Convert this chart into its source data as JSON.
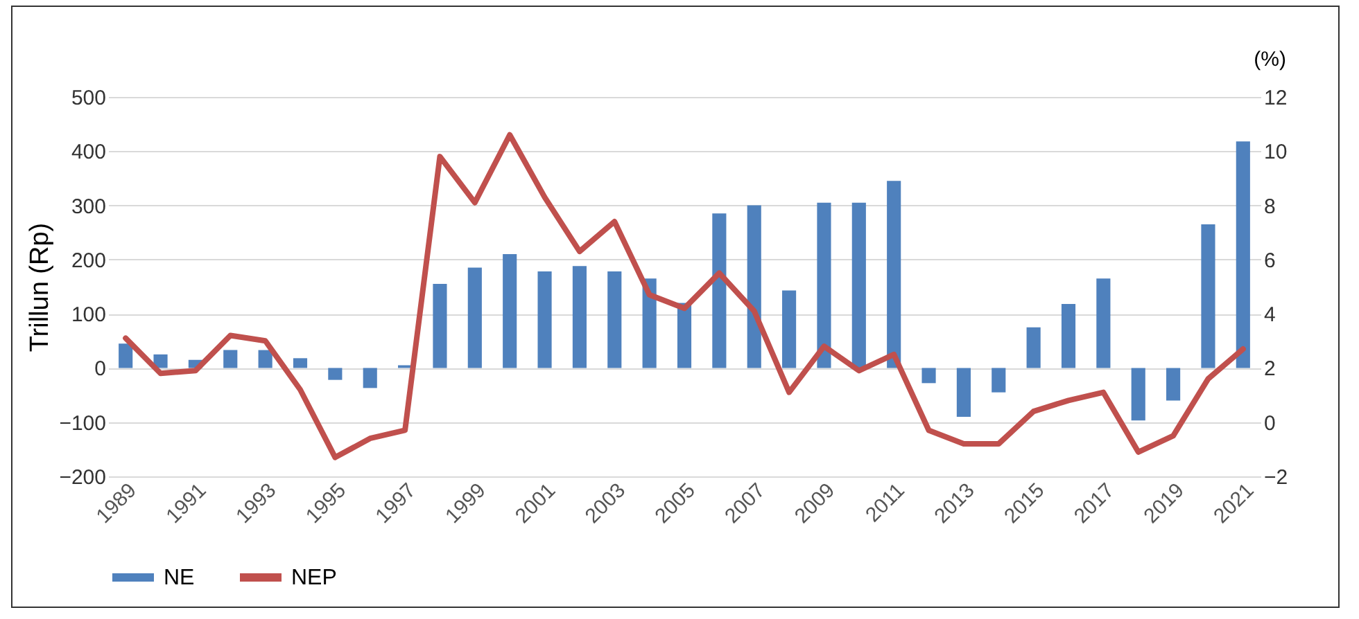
{
  "chart_data": {
    "type": "bar",
    "categories": [
      "1989",
      null,
      "1991",
      null,
      "1993",
      null,
      "1995",
      null,
      "1997",
      null,
      "1999",
      null,
      "2001",
      null,
      "2003",
      null,
      "2005",
      null,
      "2007",
      null,
      "2009",
      null,
      "2011",
      null,
      "2013",
      null,
      "2015",
      null,
      "2017",
      null,
      "2019",
      null,
      "2021"
    ],
    "series": [
      {
        "name": "NE",
        "color": "#4f81bd",
        "values": [
          45,
          25,
          15,
          33,
          33,
          18,
          -22,
          -37,
          5,
          155,
          185,
          210,
          178,
          188,
          178,
          165,
          120,
          285,
          300,
          143,
          305,
          305,
          345,
          -28,
          -90,
          -45,
          75,
          118,
          165,
          -97,
          -60,
          265,
          418
        ]
      },
      {
        "name": "NEP",
        "type": "line",
        "axis": "y2",
        "color": "#c0504d",
        "values": [
          3.1,
          1.8,
          1.9,
          3.2,
          3.0,
          1.2,
          -1.3,
          -0.6,
          -0.3,
          9.8,
          8.1,
          10.6,
          8.3,
          6.3,
          7.4,
          4.7,
          4.2,
          5.5,
          4.1,
          1.1,
          2.8,
          1.9,
          2.5,
          -0.3,
          -0.8,
          -0.8,
          0.4,
          0.8,
          1.1,
          -1.1,
          -0.5,
          1.6,
          2.7
        ]
      }
    ],
    "ylabel": "Trillun (Rp)",
    "y2label": "(%)",
    "ylim": [
      -200,
      500
    ],
    "yticks": [
      -200,
      -100,
      0,
      100,
      200,
      300,
      400,
      500
    ],
    "y2lim": [
      -2,
      12
    ],
    "y2ticks": [
      -2,
      0,
      2,
      4,
      6,
      8,
      10,
      12
    ],
    "grid": "y",
    "legend": "bottom",
    "marker": "none",
    "line_style": "solid"
  }
}
